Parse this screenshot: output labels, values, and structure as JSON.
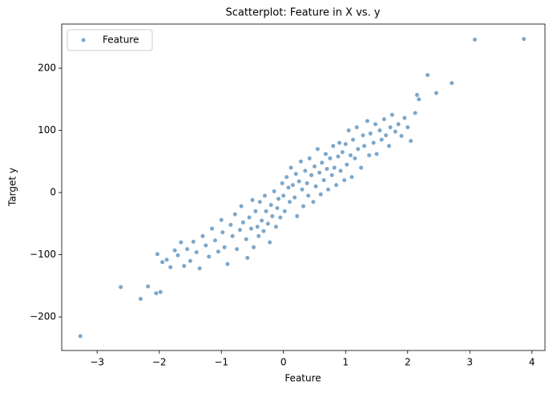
{
  "chart_data": {
    "type": "scatter",
    "title": "Scatterplot: Feature in X vs. y",
    "x_label": "Feature",
    "y_label": "Target y",
    "xlim": [
      -3.57,
      4.21
    ],
    "ylim": [
      -254,
      271
    ],
    "xticks": [
      {
        "value": -3,
        "label": "−3"
      },
      {
        "value": -2,
        "label": "−2"
      },
      {
        "value": -1,
        "label": "−1"
      },
      0,
      1,
      2,
      3,
      4
    ],
    "yticks": [
      {
        "value": -200,
        "label": "−200"
      },
      {
        "value": -100,
        "label": "−100"
      },
      0,
      100,
      200
    ],
    "legend": "upper left",
    "grid": false,
    "series": [
      {
        "name": "Feature",
        "color": "#4682b4",
        "x": [
          -3.27,
          -2.62,
          -2.3,
          -2.18,
          -2.05,
          -1.98,
          -2.03,
          -1.95,
          -1.88,
          -1.82,
          -1.75,
          -1.7,
          -1.65,
          -1.6,
          -1.55,
          -1.5,
          -1.45,
          -1.4,
          -1.35,
          -1.3,
          -1.25,
          -1.2,
          -1.15,
          -1.1,
          -1.05,
          -1.0,
          -0.98,
          -0.95,
          -0.9,
          -0.85,
          -0.82,
          -0.78,
          -0.75,
          -0.7,
          -0.68,
          -0.65,
          -0.6,
          -0.58,
          -0.55,
          -0.52,
          -0.5,
          -0.48,
          -0.45,
          -0.42,
          -0.4,
          -0.38,
          -0.35,
          -0.32,
          -0.3,
          -0.28,
          -0.25,
          -0.22,
          -0.2,
          -0.18,
          -0.15,
          -0.12,
          -0.1,
          -0.08,
          -0.05,
          -0.02,
          0.0,
          0.02,
          0.05,
          0.08,
          0.1,
          0.12,
          0.15,
          0.18,
          0.2,
          0.22,
          0.25,
          0.28,
          0.3,
          0.32,
          0.35,
          0.38,
          0.4,
          0.42,
          0.45,
          0.48,
          0.5,
          0.52,
          0.55,
          0.58,
          0.6,
          0.62,
          0.65,
          0.68,
          0.7,
          0.72,
          0.75,
          0.78,
          0.8,
          0.82,
          0.85,
          0.88,
          0.9,
          0.92,
          0.95,
          0.98,
          1.0,
          1.02,
          1.05,
          1.08,
          1.1,
          1.12,
          1.15,
          1.18,
          1.2,
          1.25,
          1.28,
          1.3,
          1.35,
          1.38,
          1.4,
          1.45,
          1.48,
          1.5,
          1.55,
          1.58,
          1.62,
          1.65,
          1.7,
          1.72,
          1.75,
          1.8,
          1.85,
          1.9,
          1.95,
          2.0,
          2.05,
          2.12,
          2.15,
          2.18,
          2.32,
          2.46,
          2.71,
          3.08,
          3.87
        ],
        "values": [
          -231,
          -152,
          -171,
          -151,
          -162,
          -160,
          -99,
          -112,
          -108,
          -120,
          -93,
          -101,
          -80,
          -118,
          -91,
          -110,
          -79,
          -96,
          -122,
          -70,
          -85,
          -103,
          -58,
          -77,
          -95,
          -44,
          -64,
          -88,
          -115,
          -52,
          -70,
          -35,
          -91,
          -60,
          -22,
          -48,
          -75,
          -105,
          -40,
          -58,
          -12,
          -88,
          -30,
          -55,
          -70,
          -15,
          -45,
          -62,
          -5,
          -30,
          -50,
          -80,
          -20,
          -38,
          2,
          -55,
          -25,
          -10,
          -40,
          15,
          -5,
          -30,
          25,
          8,
          -15,
          40,
          12,
          -8,
          30,
          -38,
          18,
          50,
          5,
          -22,
          35,
          15,
          -5,
          55,
          28,
          -15,
          42,
          10,
          70,
          32,
          -3,
          48,
          20,
          62,
          38,
          5,
          55,
          28,
          75,
          40,
          12,
          58,
          80,
          35,
          65,
          20,
          78,
          45,
          100,
          60,
          25,
          85,
          55,
          105,
          70,
          40,
          92,
          75,
          115,
          60,
          95,
          80,
          110,
          62,
          100,
          85,
          118,
          92,
          75,
          105,
          125,
          98,
          110,
          91,
          120,
          105,
          83,
          128,
          157,
          150,
          189,
          160,
          176,
          246,
          247
        ]
      }
    ]
  }
}
